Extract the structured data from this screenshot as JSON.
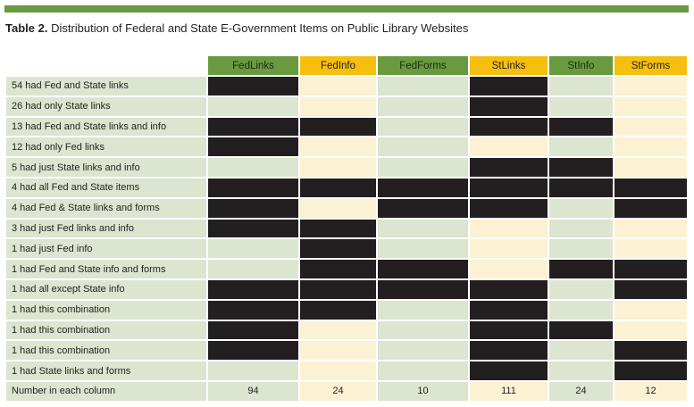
{
  "title": {
    "prefix": "Table 2.",
    "text": " Distribution of Federal and State E-Government Items on Public Library Websites"
  },
  "colors": {
    "bar": "#6a9a3f",
    "header_green": "#6a9a3f",
    "header_yellow": "#f6bf0f",
    "cell_green": "#dbe5cf",
    "cell_yellow": "#fdf1d3",
    "filled": "#231f20"
  },
  "columns": [
    {
      "label": "FedLinks",
      "tone": "green"
    },
    {
      "label": "FedInfo",
      "tone": "yellow"
    },
    {
      "label": "FedForms",
      "tone": "green"
    },
    {
      "label": "StLinks",
      "tone": "yellow"
    },
    {
      "label": "StInfo",
      "tone": "green"
    },
    {
      "label": "StForms",
      "tone": "yellow"
    }
  ],
  "rows": [
    {
      "label": "54 had Fed and State links",
      "cells": [
        1,
        0,
        0,
        1,
        0,
        0
      ]
    },
    {
      "label": "26 had only State links",
      "cells": [
        0,
        0,
        0,
        1,
        0,
        0
      ]
    },
    {
      "label": "13 had Fed and State links and info",
      "cells": [
        1,
        1,
        0,
        1,
        1,
        0
      ]
    },
    {
      "label": "12 had only Fed links",
      "cells": [
        1,
        0,
        0,
        0,
        0,
        0
      ]
    },
    {
      "label": "5 had just State links and info",
      "cells": [
        0,
        0,
        0,
        1,
        1,
        0
      ]
    },
    {
      "label": "4 had all Fed and State items",
      "cells": [
        1,
        1,
        1,
        1,
        1,
        1
      ]
    },
    {
      "label": "4 had Fed & State links and forms",
      "cells": [
        1,
        0,
        1,
        1,
        0,
        1
      ]
    },
    {
      "label": "3 had just Fed links and info",
      "cells": [
        1,
        1,
        0,
        0,
        0,
        0
      ]
    },
    {
      "label": "1 had just Fed info",
      "cells": [
        0,
        1,
        0,
        0,
        0,
        0
      ]
    },
    {
      "label": "1 had Fed and State info and forms",
      "cells": [
        0,
        1,
        1,
        0,
        1,
        1
      ]
    },
    {
      "label": "1 had all except State info",
      "cells": [
        1,
        1,
        1,
        1,
        0,
        1
      ]
    },
    {
      "label": "1 had this combination",
      "cells": [
        1,
        1,
        0,
        1,
        0,
        0
      ]
    },
    {
      "label": "1 had this combination",
      "cells": [
        1,
        0,
        0,
        1,
        1,
        0
      ]
    },
    {
      "label": "1 had this combination",
      "cells": [
        1,
        0,
        0,
        1,
        0,
        1
      ]
    },
    {
      "label": "1 had State links and forms",
      "cells": [
        0,
        0,
        0,
        1,
        0,
        1
      ]
    }
  ],
  "totals": {
    "label": "Number in each column",
    "values": [
      "94",
      "24",
      "10",
      "111",
      "24",
      "12"
    ]
  }
}
